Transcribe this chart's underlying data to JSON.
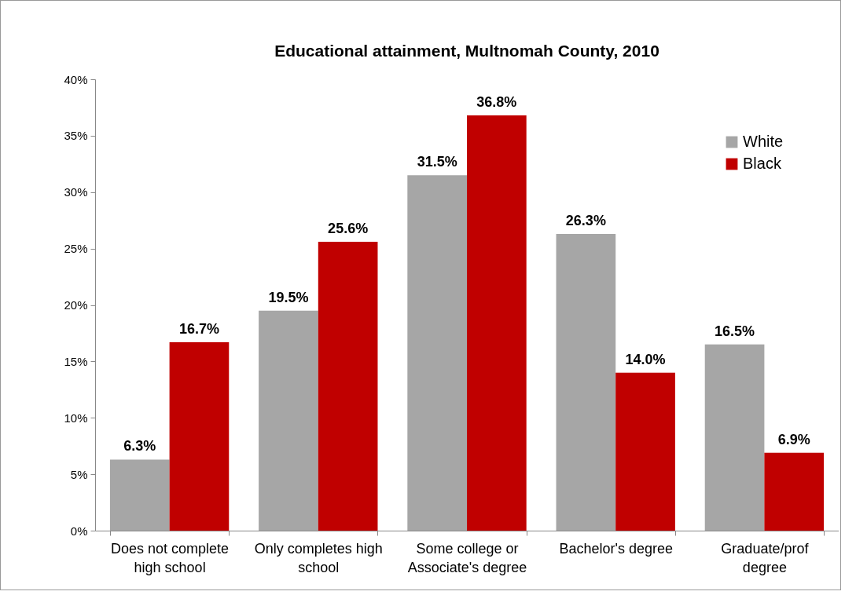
{
  "chart_data": {
    "type": "bar",
    "title": "Educational attainment, Multnomah County, 2010",
    "categories": [
      "Does not complete high school",
      "Only completes high school",
      "Some college or Associate's degree",
      "Bachelor's degree",
      "Graduate/prof degree"
    ],
    "series": [
      {
        "name": "White",
        "color": "#a6a6a6",
        "values": [
          6.3,
          19.5,
          31.5,
          26.3,
          16.5
        ],
        "value_labels": [
          "6.3%",
          "19.5%",
          "31.5%",
          "26.3%",
          "16.5%"
        ]
      },
      {
        "name": "Black",
        "color": "#c00000",
        "values": [
          16.7,
          25.6,
          36.8,
          14.0,
          6.9
        ],
        "value_labels": [
          "16.7%",
          "25.6%",
          "36.8%",
          "14.0%",
          "6.9%"
        ]
      }
    ],
    "ylim": [
      0,
      40
    ],
    "yticks": [
      {
        "value": 0,
        "label": "0%"
      },
      {
        "value": 5,
        "label": "5%"
      },
      {
        "value": 10,
        "label": "10%"
      },
      {
        "value": 15,
        "label": "15%"
      },
      {
        "value": 20,
        "label": "20%"
      },
      {
        "value": 25,
        "label": "25%"
      },
      {
        "value": 30,
        "label": "30%"
      },
      {
        "value": 35,
        "label": "35%"
      },
      {
        "value": 40,
        "label": "40%"
      }
    ],
    "grid": false,
    "legend": "top right"
  }
}
